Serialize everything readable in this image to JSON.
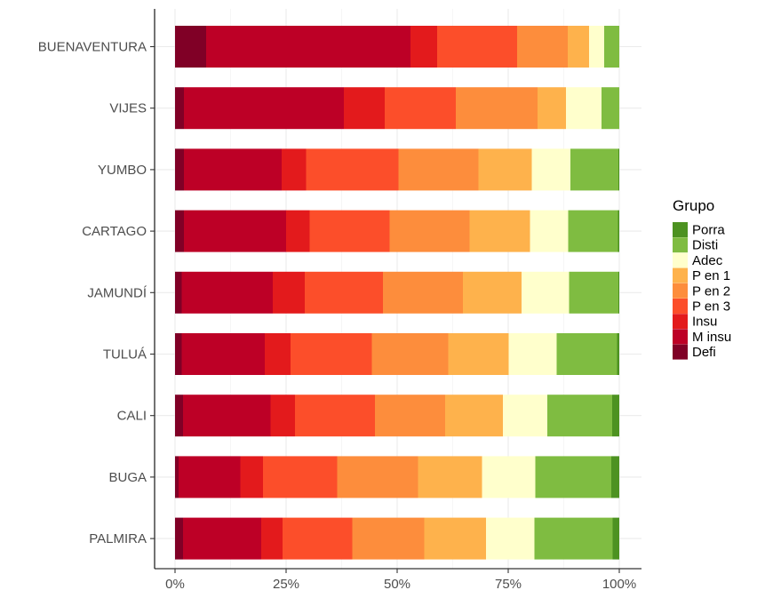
{
  "chart_data": {
    "type": "bar",
    "orientation": "horizontal",
    "stacked": "percent",
    "categories": [
      "BUENAVENTURA",
      "VIJES",
      "YUMBO",
      "CARTAGO",
      "JAMUNDÍ",
      "TULUÁ",
      "CALI",
      "BUGA",
      "PALMIRA"
    ],
    "xticks": [
      "0%",
      "25%",
      "50%",
      "75%",
      "100%"
    ],
    "xlim": [
      0,
      100
    ],
    "grid": true,
    "legend_title": "Grupo",
    "legend_position": "right",
    "series": [
      {
        "name": "Defi",
        "color": "#800026",
        "values": [
          7.0,
          2.0,
          2.0,
          2.0,
          1.5,
          1.5,
          1.8,
          0.8,
          1.8
        ]
      },
      {
        "name": "M insu",
        "color": "#bd0026",
        "values": [
          46.0,
          36.0,
          22.0,
          23.0,
          20.5,
          18.7,
          19.7,
          13.9,
          17.6
        ]
      },
      {
        "name": "Insu",
        "color": "#e31a1c",
        "values": [
          6.0,
          9.2,
          5.5,
          5.3,
          7.2,
          5.8,
          5.5,
          5.1,
          4.8
        ]
      },
      {
        "name": "P en 3",
        "color": "#fc4e2a",
        "values": [
          18.0,
          16.0,
          20.8,
          18.0,
          17.6,
          18.3,
          18.0,
          16.7,
          15.7
        ]
      },
      {
        "name": "P en 2",
        "color": "#fd8d3c",
        "values": [
          11.4,
          18.4,
          18.0,
          18.0,
          18.0,
          17.2,
          15.8,
          18.2,
          16.2
        ]
      },
      {
        "name": "P en 1",
        "color": "#feb24c",
        "values": [
          4.8,
          6.4,
          12.0,
          13.6,
          13.2,
          13.6,
          13.0,
          14.4,
          13.9
        ]
      },
      {
        "name": "Adec",
        "color": "#ffffcc",
        "values": [
          3.4,
          8.0,
          8.7,
          8.6,
          10.7,
          10.8,
          10.0,
          12.0,
          10.9
        ]
      },
      {
        "name": "Disti",
        "color": "#7fbc41",
        "values": [
          3.4,
          4.0,
          10.8,
          11.2,
          11.1,
          13.6,
          14.6,
          17.1,
          17.6
        ]
      },
      {
        "name": "Porra",
        "color": "#4d9221",
        "values": [
          0.0,
          0.0,
          0.2,
          0.3,
          0.2,
          0.5,
          1.6,
          1.8,
          1.5
        ]
      }
    ]
  }
}
